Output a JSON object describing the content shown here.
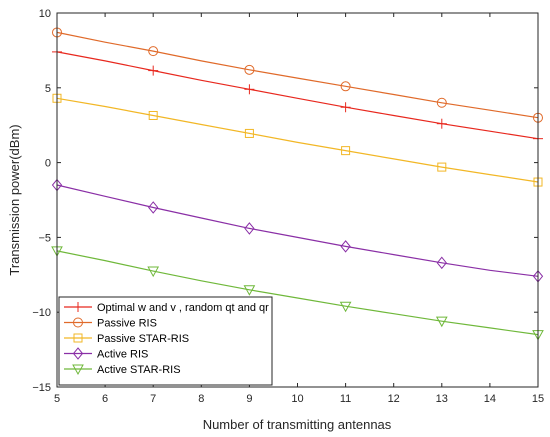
{
  "chart_data": {
    "type": "line",
    "xlabel": "Number of transmitting antennas",
    "ylabel": "Transmission power(dBm)",
    "xlim": [
      5,
      15
    ],
    "ylim": [
      -15,
      10
    ],
    "xticks": [
      5,
      6,
      7,
      8,
      9,
      10,
      11,
      12,
      13,
      14,
      15
    ],
    "yticks": [
      -15,
      -10,
      -5,
      0,
      5,
      10
    ],
    "grid": false,
    "legend_position": "bottom-left",
    "marker_x": [
      5,
      7,
      9,
      11,
      13,
      15
    ],
    "series": [
      {
        "name": "Optimal w and v , random qt and qr",
        "color": "#e8281e",
        "marker": "plus",
        "x": [
          5,
          6,
          7,
          8,
          9,
          10,
          11,
          12,
          13,
          14,
          15
        ],
        "values": [
          7.4,
          6.8,
          6.15,
          5.5,
          4.9,
          4.3,
          3.7,
          3.15,
          2.6,
          2.1,
          1.6
        ]
      },
      {
        "name": "Passive RIS",
        "color": "#e06a2a",
        "marker": "circle",
        "x": [
          5,
          6,
          7,
          8,
          9,
          10,
          11,
          12,
          13,
          14,
          15
        ],
        "values": [
          8.7,
          8.05,
          7.45,
          6.8,
          6.2,
          5.65,
          5.1,
          4.55,
          4.0,
          3.5,
          3.0
        ]
      },
      {
        "name": "Passive STAR-RIS",
        "color": "#f2b726",
        "marker": "square",
        "x": [
          5,
          6,
          7,
          8,
          9,
          10,
          11,
          12,
          13,
          14,
          15
        ],
        "values": [
          4.3,
          3.75,
          3.15,
          2.55,
          1.95,
          1.35,
          0.8,
          0.25,
          -0.3,
          -0.8,
          -1.3
        ]
      },
      {
        "name": "Active RIS",
        "color": "#8a2fa6",
        "marker": "diamond",
        "x": [
          5,
          6,
          7,
          8,
          9,
          10,
          11,
          12,
          13,
          14,
          15
        ],
        "values": [
          -1.5,
          -2.25,
          -3.0,
          -3.7,
          -4.4,
          -5.0,
          -5.6,
          -6.15,
          -6.7,
          -7.2,
          -7.6
        ]
      },
      {
        "name": "Active STAR-RIS",
        "color": "#6fb83a",
        "marker": "triangle-down",
        "x": [
          5,
          6,
          7,
          8,
          9,
          10,
          11,
          12,
          13,
          14,
          15
        ],
        "values": [
          -5.9,
          -6.55,
          -7.25,
          -7.9,
          -8.5,
          -9.05,
          -9.6,
          -10.1,
          -10.6,
          -11.05,
          -11.5
        ]
      }
    ]
  }
}
